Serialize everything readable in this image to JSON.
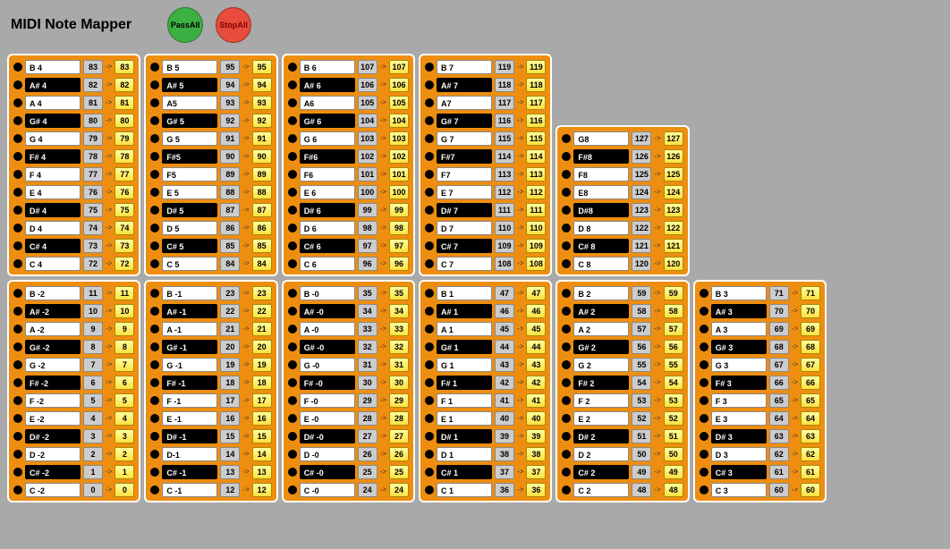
{
  "title": "MIDI Note  Mapper",
  "passLabel": "PassAll",
  "stopLabel": "StopAll",
  "colors": {
    "panelBg": "#ee8e10",
    "outBg1": "#ffffa0",
    "outBg2": "#ffe040",
    "inBg": "#cccccc"
  },
  "topRow": [
    {
      "notes": [
        {
          "name": "B 4",
          "sharp": false,
          "in": 83,
          "out": 83
        },
        {
          "name": "A# 4",
          "sharp": true,
          "in": 82,
          "out": 82
        },
        {
          "name": "A 4",
          "sharp": false,
          "in": 81,
          "out": 81
        },
        {
          "name": "G# 4",
          "sharp": true,
          "in": 80,
          "out": 80
        },
        {
          "name": "G 4",
          "sharp": false,
          "in": 79,
          "out": 79
        },
        {
          "name": "F# 4",
          "sharp": true,
          "in": 78,
          "out": 78
        },
        {
          "name": "F 4",
          "sharp": false,
          "in": 77,
          "out": 77
        },
        {
          "name": "E 4",
          "sharp": false,
          "in": 76,
          "out": 76
        },
        {
          "name": "D# 4",
          "sharp": true,
          "in": 75,
          "out": 75
        },
        {
          "name": "D 4",
          "sharp": false,
          "in": 74,
          "out": 74
        },
        {
          "name": "C# 4",
          "sharp": true,
          "in": 73,
          "out": 73
        },
        {
          "name": "C 4",
          "sharp": false,
          "in": 72,
          "out": 72
        }
      ]
    },
    {
      "notes": [
        {
          "name": "B 5",
          "sharp": false,
          "in": 95,
          "out": 95
        },
        {
          "name": "A# 5",
          "sharp": true,
          "in": 94,
          "out": 94
        },
        {
          "name": "A5",
          "sharp": false,
          "in": 93,
          "out": 93
        },
        {
          "name": "G# 5",
          "sharp": true,
          "in": 92,
          "out": 92
        },
        {
          "name": "G 5",
          "sharp": false,
          "in": 91,
          "out": 91
        },
        {
          "name": "F#5",
          "sharp": true,
          "in": 90,
          "out": 90
        },
        {
          "name": "F5",
          "sharp": false,
          "in": 89,
          "out": 89
        },
        {
          "name": "E 5",
          "sharp": false,
          "in": 88,
          "out": 88
        },
        {
          "name": "D# 5",
          "sharp": true,
          "in": 87,
          "out": 87
        },
        {
          "name": "D 5",
          "sharp": false,
          "in": 86,
          "out": 86
        },
        {
          "name": "C# 5",
          "sharp": true,
          "in": 85,
          "out": 85
        },
        {
          "name": "C 5",
          "sharp": false,
          "in": 84,
          "out": 84
        }
      ]
    },
    {
      "notes": [
        {
          "name": "B 6",
          "sharp": false,
          "in": 107,
          "out": 107
        },
        {
          "name": "A# 6",
          "sharp": true,
          "in": 106,
          "out": 106
        },
        {
          "name": "A6",
          "sharp": false,
          "in": 105,
          "out": 105
        },
        {
          "name": "G# 6",
          "sharp": true,
          "in": 104,
          "out": 104
        },
        {
          "name": "G 6",
          "sharp": false,
          "in": 103,
          "out": 103
        },
        {
          "name": "F#6",
          "sharp": true,
          "in": 102,
          "out": 102
        },
        {
          "name": "F6",
          "sharp": false,
          "in": 101,
          "out": 101
        },
        {
          "name": "E 6",
          "sharp": false,
          "in": 100,
          "out": 100
        },
        {
          "name": "D# 6",
          "sharp": true,
          "in": 99,
          "out": 99
        },
        {
          "name": "D 6",
          "sharp": false,
          "in": 98,
          "out": 98
        },
        {
          "name": "C# 6",
          "sharp": true,
          "in": 97,
          "out": 97
        },
        {
          "name": "C 6",
          "sharp": false,
          "in": 96,
          "out": 96
        }
      ]
    },
    {
      "notes": [
        {
          "name": "B 7",
          "sharp": false,
          "in": 119,
          "out": 119
        },
        {
          "name": "A# 7",
          "sharp": true,
          "in": 118,
          "out": 118
        },
        {
          "name": "A7",
          "sharp": false,
          "in": 117,
          "out": 117
        },
        {
          "name": "G# 7",
          "sharp": true,
          "in": 116,
          "out": 116
        },
        {
          "name": "G 7",
          "sharp": false,
          "in": 115,
          "out": 115
        },
        {
          "name": "F#7",
          "sharp": true,
          "in": 114,
          "out": 114
        },
        {
          "name": "F7",
          "sharp": false,
          "in": 113,
          "out": 113
        },
        {
          "name": "E 7",
          "sharp": false,
          "in": 112,
          "out": 112
        },
        {
          "name": "D# 7",
          "sharp": true,
          "in": 111,
          "out": 111
        },
        {
          "name": "D 7",
          "sharp": false,
          "in": 110,
          "out": 110
        },
        {
          "name": "C# 7",
          "sharp": true,
          "in": 109,
          "out": 109
        },
        {
          "name": "C 7",
          "sharp": false,
          "in": 108,
          "out": 108
        }
      ]
    },
    {
      "short": true,
      "notes": [
        {
          "name": "G8",
          "sharp": false,
          "in": 127,
          "out": 127
        },
        {
          "name": "F#8",
          "sharp": true,
          "in": 126,
          "out": 126
        },
        {
          "name": "F8",
          "sharp": false,
          "in": 125,
          "out": 125
        },
        {
          "name": "E8",
          "sharp": false,
          "in": 124,
          "out": 124
        },
        {
          "name": "D#8",
          "sharp": true,
          "in": 123,
          "out": 123
        },
        {
          "name": "D 8",
          "sharp": false,
          "in": 122,
          "out": 122
        },
        {
          "name": "C# 8",
          "sharp": true,
          "in": 121,
          "out": 121
        },
        {
          "name": "C 8",
          "sharp": false,
          "in": 120,
          "out": 120
        }
      ]
    }
  ],
  "bottomRow": [
    {
      "notes": [
        {
          "name": "B -2",
          "sharp": false,
          "in": 11,
          "out": 11
        },
        {
          "name": "A# -2",
          "sharp": true,
          "in": 10,
          "out": 10
        },
        {
          "name": "A -2",
          "sharp": false,
          "in": 9,
          "out": 9
        },
        {
          "name": "G# -2",
          "sharp": true,
          "in": 8,
          "out": 8
        },
        {
          "name": "G -2",
          "sharp": false,
          "in": 7,
          "out": 7
        },
        {
          "name": "F# -2",
          "sharp": true,
          "in": 6,
          "out": 6
        },
        {
          "name": "F -2",
          "sharp": false,
          "in": 5,
          "out": 5
        },
        {
          "name": "E -2",
          "sharp": false,
          "in": 4,
          "out": 4
        },
        {
          "name": "D# -2",
          "sharp": true,
          "in": 3,
          "out": 3
        },
        {
          "name": "D -2",
          "sharp": false,
          "in": 2,
          "out": 2
        },
        {
          "name": "C# -2",
          "sharp": true,
          "in": 1,
          "out": 1
        },
        {
          "name": "C -2",
          "sharp": false,
          "in": 0,
          "out": 0
        }
      ]
    },
    {
      "notes": [
        {
          "name": "B -1",
          "sharp": false,
          "in": 23,
          "out": 23
        },
        {
          "name": "A# -1",
          "sharp": true,
          "in": 22,
          "out": 22
        },
        {
          "name": "A -1",
          "sharp": false,
          "in": 21,
          "out": 21
        },
        {
          "name": "G# -1",
          "sharp": true,
          "in": 20,
          "out": 20
        },
        {
          "name": "G -1",
          "sharp": false,
          "in": 19,
          "out": 19
        },
        {
          "name": "F# -1",
          "sharp": true,
          "in": 18,
          "out": 18
        },
        {
          "name": "F -1",
          "sharp": false,
          "in": 17,
          "out": 17
        },
        {
          "name": "E -1",
          "sharp": false,
          "in": 16,
          "out": 16
        },
        {
          "name": "D# -1",
          "sharp": true,
          "in": 15,
          "out": 15
        },
        {
          "name": "D-1",
          "sharp": false,
          "in": 14,
          "out": 14
        },
        {
          "name": "C# -1",
          "sharp": true,
          "in": 13,
          "out": 13
        },
        {
          "name": "C -1",
          "sharp": false,
          "in": 12,
          "out": 12
        }
      ]
    },
    {
      "notes": [
        {
          "name": "B -0",
          "sharp": false,
          "in": 35,
          "out": 35
        },
        {
          "name": "A# -0",
          "sharp": true,
          "in": 34,
          "out": 34
        },
        {
          "name": "A -0",
          "sharp": false,
          "in": 33,
          "out": 33
        },
        {
          "name": "G# -0",
          "sharp": true,
          "in": 32,
          "out": 32
        },
        {
          "name": "G -0",
          "sharp": false,
          "in": 31,
          "out": 31
        },
        {
          "name": "F# -0",
          "sharp": true,
          "in": 30,
          "out": 30
        },
        {
          "name": "F -0",
          "sharp": false,
          "in": 29,
          "out": 29
        },
        {
          "name": "E -0",
          "sharp": false,
          "in": 28,
          "out": 28
        },
        {
          "name": "D# -0",
          "sharp": true,
          "in": 27,
          "out": 27
        },
        {
          "name": "D -0",
          "sharp": false,
          "in": 26,
          "out": 26
        },
        {
          "name": "C# -0",
          "sharp": true,
          "in": 25,
          "out": 25
        },
        {
          "name": "C -0",
          "sharp": false,
          "in": 24,
          "out": 24
        }
      ]
    },
    {
      "notes": [
        {
          "name": "B 1",
          "sharp": false,
          "in": 47,
          "out": 47
        },
        {
          "name": "A# 1",
          "sharp": true,
          "in": 46,
          "out": 46
        },
        {
          "name": "A 1",
          "sharp": false,
          "in": 45,
          "out": 45
        },
        {
          "name": "G# 1",
          "sharp": true,
          "in": 44,
          "out": 44
        },
        {
          "name": "G 1",
          "sharp": false,
          "in": 43,
          "out": 43
        },
        {
          "name": "F# 1",
          "sharp": true,
          "in": 42,
          "out": 42
        },
        {
          "name": "F 1",
          "sharp": false,
          "in": 41,
          "out": 41
        },
        {
          "name": "E 1",
          "sharp": false,
          "in": 40,
          "out": 40
        },
        {
          "name": "D# 1",
          "sharp": true,
          "in": 39,
          "out": 39
        },
        {
          "name": "D 1",
          "sharp": false,
          "in": 38,
          "out": 38
        },
        {
          "name": "C# 1",
          "sharp": true,
          "in": 37,
          "out": 37
        },
        {
          "name": "C 1",
          "sharp": false,
          "in": 36,
          "out": 36
        }
      ]
    },
    {
      "notes": [
        {
          "name": "B 2",
          "sharp": false,
          "in": 59,
          "out": 59
        },
        {
          "name": "A# 2",
          "sharp": true,
          "in": 58,
          "out": 58
        },
        {
          "name": "A 2",
          "sharp": false,
          "in": 57,
          "out": 57
        },
        {
          "name": "G# 2",
          "sharp": true,
          "in": 56,
          "out": 56
        },
        {
          "name": "G 2",
          "sharp": false,
          "in": 55,
          "out": 55
        },
        {
          "name": "F# 2",
          "sharp": true,
          "in": 54,
          "out": 54
        },
        {
          "name": "F 2",
          "sharp": false,
          "in": 53,
          "out": 53
        },
        {
          "name": "E 2",
          "sharp": false,
          "in": 52,
          "out": 52
        },
        {
          "name": "D# 2",
          "sharp": true,
          "in": 51,
          "out": 51
        },
        {
          "name": "D 2",
          "sharp": false,
          "in": 50,
          "out": 50
        },
        {
          "name": "C# 2",
          "sharp": true,
          "in": 49,
          "out": 49
        },
        {
          "name": "C 2",
          "sharp": false,
          "in": 48,
          "out": 48
        }
      ]
    },
    {
      "notes": [
        {
          "name": "B 3",
          "sharp": false,
          "in": 71,
          "out": 71
        },
        {
          "name": "A# 3",
          "sharp": true,
          "in": 70,
          "out": 70
        },
        {
          "name": "A 3",
          "sharp": false,
          "in": 69,
          "out": 69
        },
        {
          "name": "G# 3",
          "sharp": true,
          "in": 68,
          "out": 68
        },
        {
          "name": "G 3",
          "sharp": false,
          "in": 67,
          "out": 67
        },
        {
          "name": "F# 3",
          "sharp": true,
          "in": 66,
          "out": 66
        },
        {
          "name": "F 3",
          "sharp": false,
          "in": 65,
          "out": 65
        },
        {
          "name": "E 3",
          "sharp": false,
          "in": 64,
          "out": 64
        },
        {
          "name": "D# 3",
          "sharp": true,
          "in": 63,
          "out": 63
        },
        {
          "name": "D 3",
          "sharp": false,
          "in": 62,
          "out": 62
        },
        {
          "name": "C# 3",
          "sharp": true,
          "in": 61,
          "out": 61
        },
        {
          "name": "C 3",
          "sharp": false,
          "in": 60,
          "out": 60
        }
      ]
    }
  ]
}
